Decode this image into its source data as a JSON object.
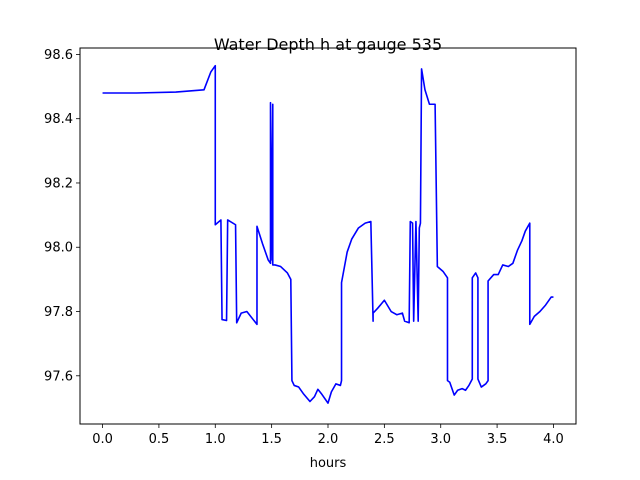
{
  "chart_data": {
    "type": "line",
    "title": "Water Depth h at gauge 535",
    "xlabel": "hours",
    "ylabel": "",
    "xlim": [
      -0.2,
      4.2
    ],
    "ylim": [
      97.45,
      98.62
    ],
    "xticks": [
      0.0,
      0.5,
      1.0,
      1.5,
      2.0,
      2.5,
      3.0,
      3.5,
      4.0
    ],
    "xtick_labels": [
      "0.0",
      "0.5",
      "1.0",
      "1.5",
      "2.0",
      "2.5",
      "3.0",
      "3.5",
      "4.0"
    ],
    "yticks": [
      97.6,
      97.8,
      98.0,
      98.2,
      98.4,
      98.6
    ],
    "ytick_labels": [
      "97.6",
      "97.8",
      "98.0",
      "98.2",
      "98.4",
      "98.6"
    ],
    "grid": false,
    "legend": "none",
    "series": [
      {
        "color": "#0000ff",
        "x": [
          0.0,
          0.3,
          0.65,
          0.9,
          0.96,
          1.0,
          1.0,
          1.05,
          1.06,
          1.1,
          1.11,
          1.18,
          1.19,
          1.23,
          1.28,
          1.37,
          1.37,
          1.42,
          1.47,
          1.49,
          1.49,
          1.495,
          1.51,
          1.51,
          1.53,
          1.58,
          1.64,
          1.67,
          1.68,
          1.7,
          1.74,
          1.78,
          1.84,
          1.88,
          1.91,
          1.94,
          2.0,
          2.03,
          2.07,
          2.11,
          2.12,
          2.12,
          2.17,
          2.21,
          2.27,
          2.33,
          2.38,
          2.4,
          2.4,
          2.44,
          2.5,
          2.56,
          2.61,
          2.66,
          2.68,
          2.72,
          2.73,
          2.75,
          2.76,
          2.78,
          2.8,
          2.81,
          2.82,
          2.83,
          2.86,
          2.9,
          2.95,
          2.97,
          3.02,
          3.06,
          3.06,
          3.08,
          3.12,
          3.15,
          3.19,
          3.22,
          3.25,
          3.28,
          3.28,
          3.31,
          3.33,
          3.33,
          3.36,
          3.4,
          3.42,
          3.42,
          3.47,
          3.51,
          3.55,
          3.6,
          3.64,
          3.68,
          3.72,
          3.75,
          3.79,
          3.79,
          3.83,
          3.88,
          3.93,
          3.98,
          4.0
        ],
        "y": [
          98.48,
          98.48,
          98.483,
          98.49,
          98.545,
          98.565,
          98.07,
          98.085,
          97.775,
          97.772,
          98.085,
          98.07,
          97.765,
          97.795,
          97.8,
          97.76,
          98.065,
          98.01,
          97.96,
          97.95,
          98.45,
          97.96,
          98.445,
          97.945,
          97.945,
          97.94,
          97.92,
          97.9,
          97.585,
          97.57,
          97.565,
          97.545,
          97.52,
          97.535,
          97.558,
          97.545,
          97.515,
          97.55,
          97.575,
          97.57,
          97.585,
          97.89,
          97.985,
          98.025,
          98.06,
          98.075,
          98.08,
          97.77,
          97.795,
          97.81,
          97.835,
          97.8,
          97.79,
          97.795,
          97.77,
          97.765,
          98.08,
          98.075,
          97.77,
          98.08,
          97.77,
          98.06,
          98.075,
          98.555,
          98.49,
          98.445,
          98.445,
          97.94,
          97.925,
          97.905,
          97.585,
          97.58,
          97.54,
          97.555,
          97.56,
          97.555,
          97.57,
          97.59,
          97.905,
          97.92,
          97.905,
          97.59,
          97.565,
          97.575,
          97.585,
          97.895,
          97.915,
          97.915,
          97.945,
          97.94,
          97.95,
          97.99,
          98.02,
          98.05,
          98.075,
          97.76,
          97.785,
          97.8,
          97.82,
          97.845,
          97.845
        ]
      }
    ]
  }
}
